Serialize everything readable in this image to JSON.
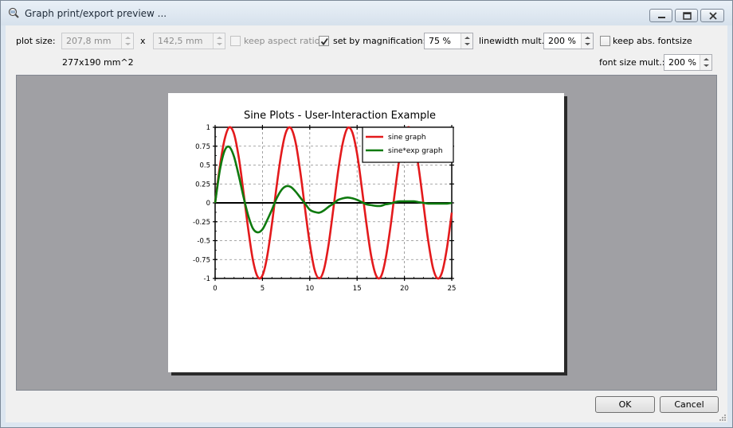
{
  "window": {
    "title": "Graph print/export preview ..."
  },
  "toolbar": {
    "plot_size_label": "plot size:",
    "width_value": "207,8 mm",
    "x_label": "x",
    "height_value": "142,5 mm",
    "keep_aspect_label": "keep aspect ratio",
    "set_by_mag_label": "set by magnification:",
    "set_by_mag_checked": true,
    "magnification_value": "75 %",
    "linewidth_label": "linewidth mult.:",
    "linewidth_value": "200 %",
    "keep_abs_font_label": "keep abs. fontsize",
    "area_label": "277x190 mm^2",
    "font_size_label": "font size mult.:",
    "font_size_value": "200 %"
  },
  "buttons": {
    "ok": "OK",
    "cancel": "Cancel"
  },
  "chart_data": {
    "type": "line",
    "title": "Sine Plots - User-Interaction Example",
    "xlabel": "",
    "ylabel": "",
    "xlim": [
      0,
      25
    ],
    "ylim": [
      -1,
      1
    ],
    "x_ticks": [
      "0",
      "5",
      "10",
      "15",
      "20",
      "25"
    ],
    "y_ticks": [
      "1",
      "0.75",
      "0.5",
      "0.25",
      "0",
      "-0.25",
      "-0.5",
      "-0.75",
      "-1"
    ],
    "grid": true,
    "legend_position": "top-right",
    "series": [
      {
        "name": "sine graph",
        "color": "#e31a1c",
        "x": [
          0,
          0.5,
          1,
          1.5,
          2,
          2.5,
          3,
          3.5,
          4,
          4.5,
          5,
          5.5,
          6,
          6.5,
          7,
          7.5,
          8,
          8.5,
          9,
          9.5,
          10,
          10.5,
          11,
          11.5,
          12,
          12.5,
          13,
          13.5,
          14,
          14.5,
          15,
          15.5,
          16,
          16.5,
          17,
          17.5,
          18,
          18.5,
          19,
          19.5,
          20,
          20.5,
          21,
          21.5,
          22,
          22.5,
          23,
          23.5,
          24,
          24.5,
          25
        ],
        "y": [
          0,
          0.48,
          0.84,
          1.0,
          0.91,
          0.6,
          0.14,
          -0.35,
          -0.76,
          -0.98,
          -0.96,
          -0.71,
          -0.28,
          0.22,
          0.66,
          0.94,
          0.99,
          0.8,
          0.41,
          -0.08,
          -0.54,
          -0.88,
          -1.0,
          -0.88,
          -0.54,
          -0.07,
          0.42,
          0.8,
          0.99,
          0.93,
          0.65,
          0.2,
          -0.29,
          -0.71,
          -0.96,
          -0.98,
          -0.75,
          -0.34,
          0.15,
          0.61,
          0.91,
          1.0,
          0.84,
          0.47,
          -0.01,
          -0.49,
          -0.85,
          -1.0,
          -0.91,
          -0.59,
          -0.13
        ]
      },
      {
        "name": "sine*exp graph",
        "color": "#0f7a0f",
        "x": [
          0,
          0.5,
          1,
          1.5,
          2,
          2.5,
          3,
          3.5,
          4,
          4.5,
          5,
          5.5,
          6,
          6.5,
          7,
          7.5,
          8,
          8.5,
          9,
          9.5,
          10,
          10.5,
          11,
          11.5,
          12,
          12.5,
          13,
          13.5,
          14,
          14.5,
          15,
          15.5,
          16,
          16.5,
          17,
          17.5,
          18,
          18.5,
          19,
          19.5,
          20,
          20.5,
          21,
          21.5,
          22,
          22.5,
          23,
          23.5,
          24,
          24.5,
          25
        ],
        "y": [
          0,
          0.43,
          0.69,
          0.74,
          0.61,
          0.36,
          0.08,
          -0.17,
          -0.34,
          -0.39,
          -0.35,
          -0.23,
          -0.09,
          0.06,
          0.17,
          0.22,
          0.21,
          0.15,
          0.07,
          -0.01,
          -0.09,
          -0.12,
          -0.13,
          -0.1,
          -0.05,
          -0.01,
          0.04,
          0.06,
          0.07,
          0.06,
          0.04,
          0.01,
          -0.02,
          -0.03,
          -0.04,
          -0.04,
          -0.02,
          -0.01,
          0.01,
          0.02,
          0.02,
          0.02,
          0.02,
          0.01,
          0.0,
          -0.01,
          -0.01,
          -0.01,
          -0.01,
          -0.01,
          0.0
        ]
      }
    ]
  }
}
